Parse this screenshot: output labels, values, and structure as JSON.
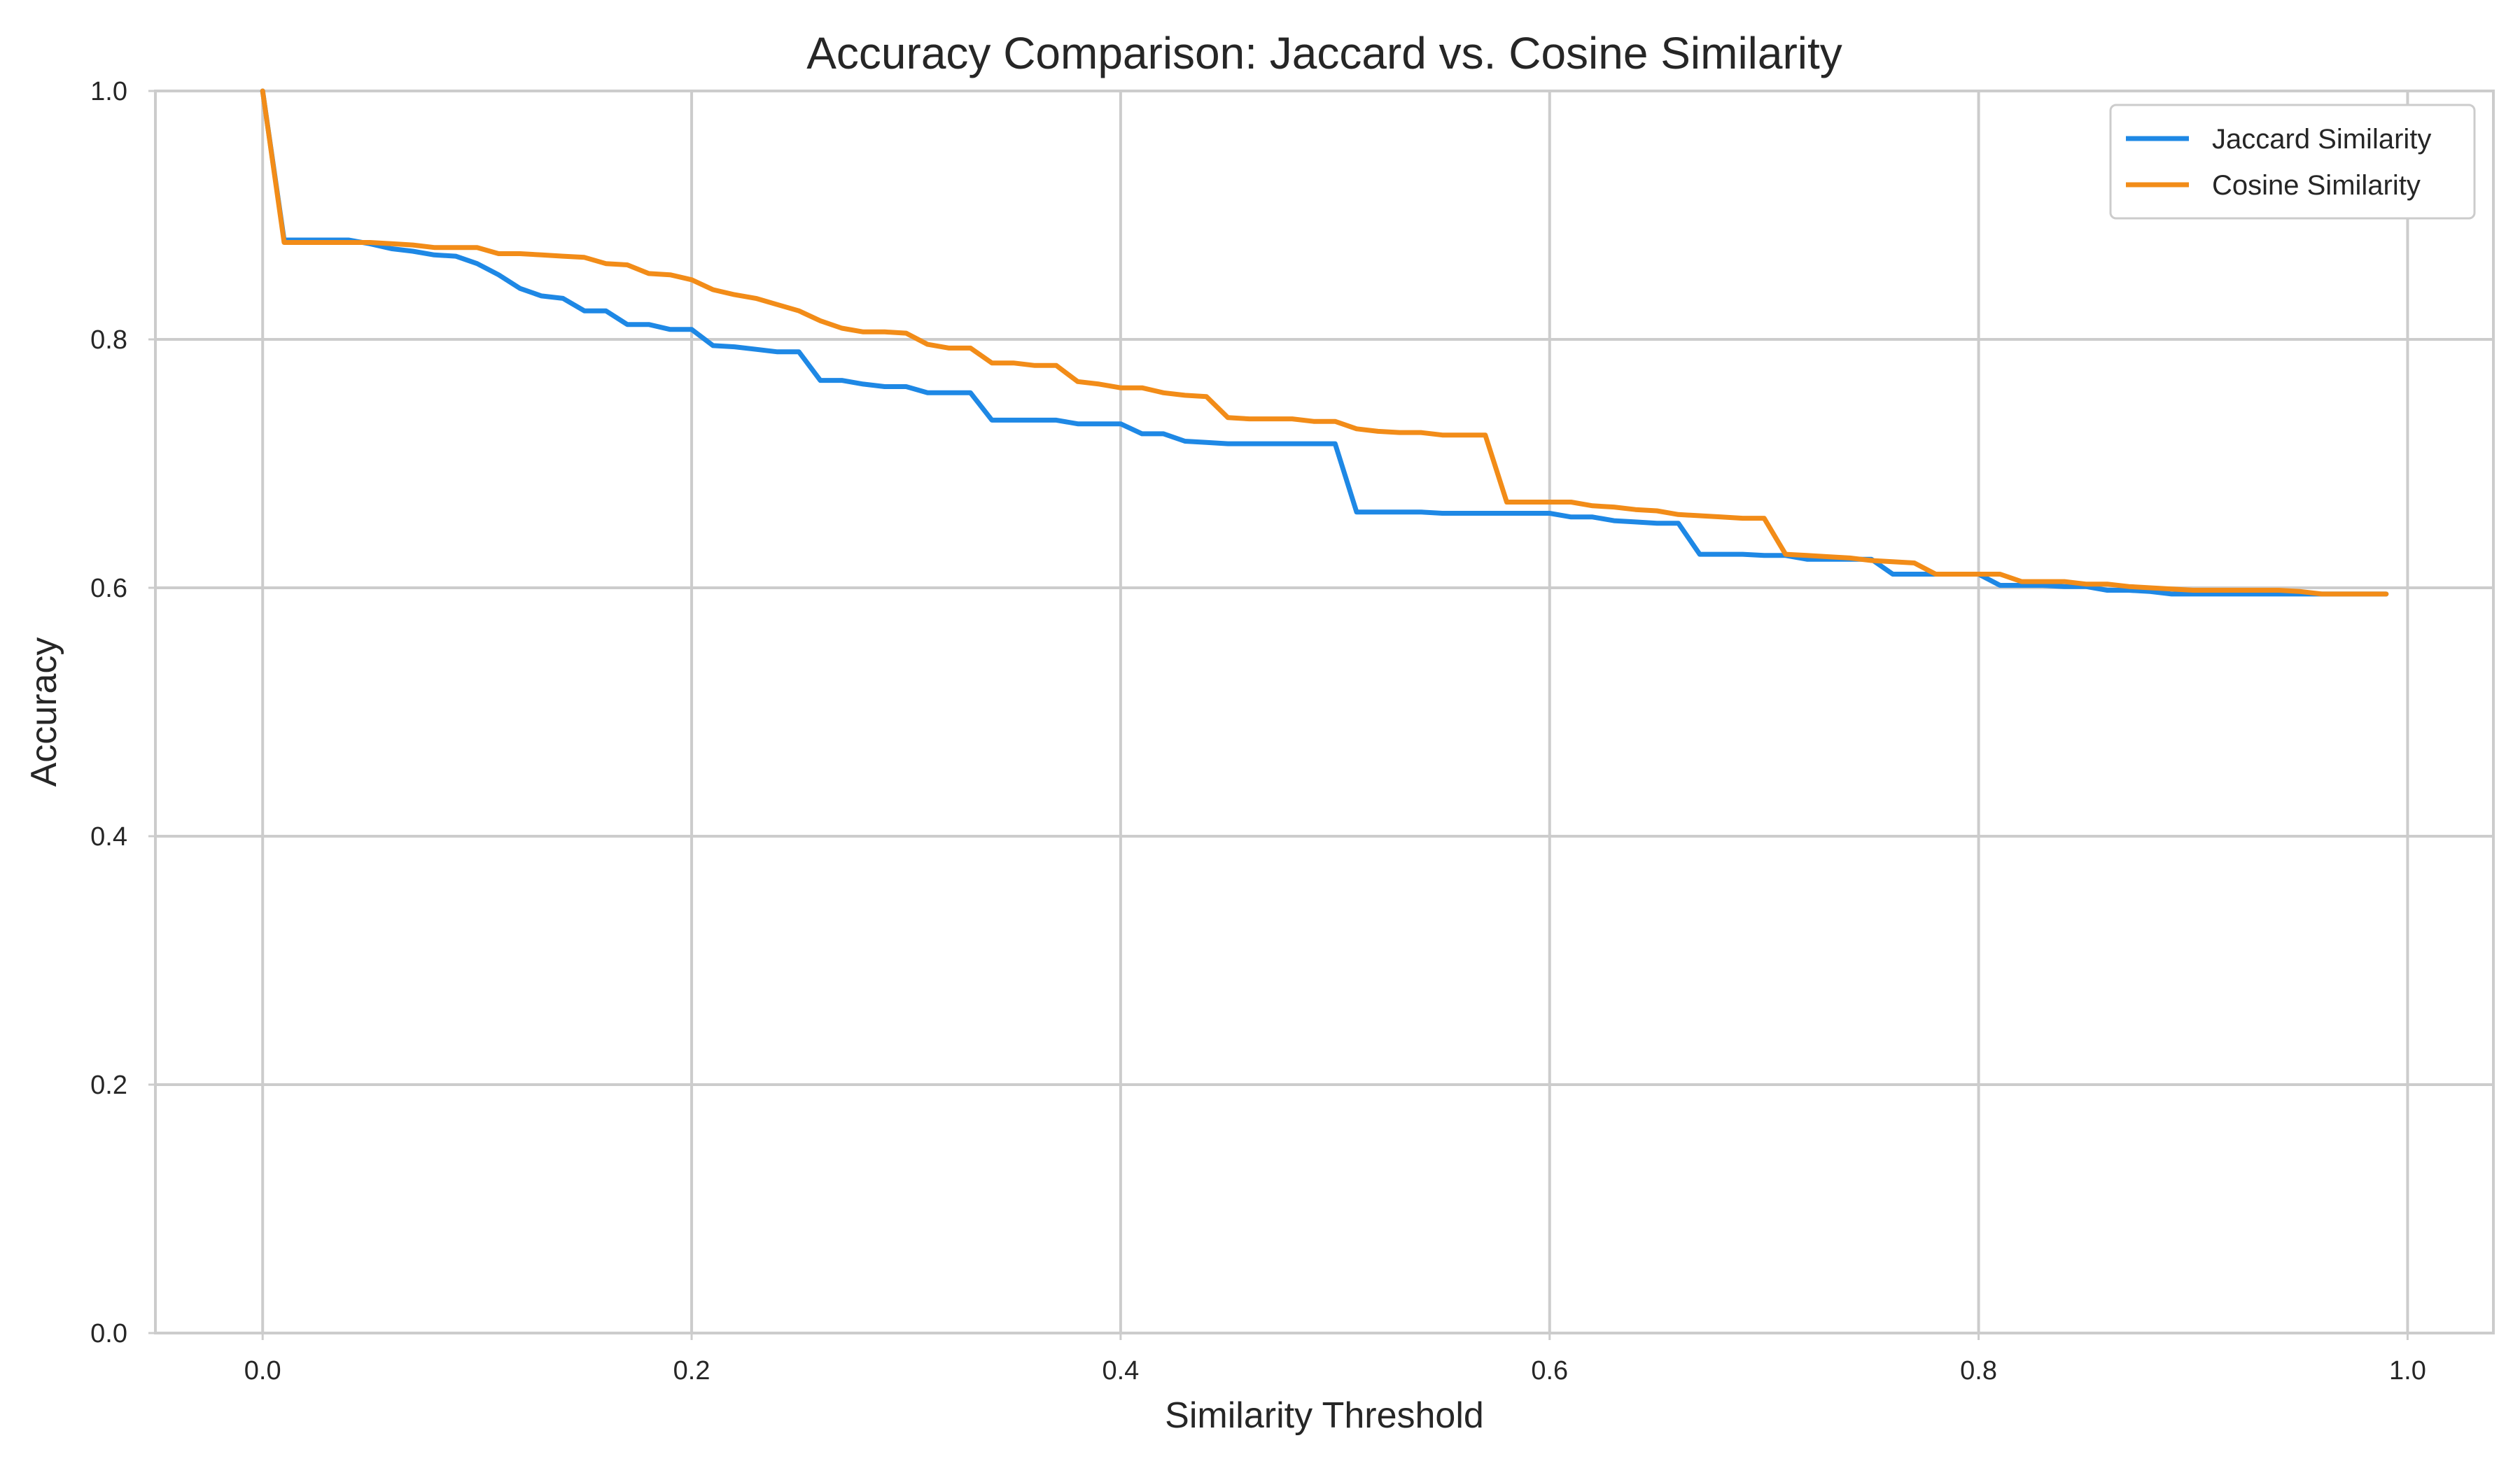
{
  "chart_data": {
    "type": "line",
    "title": "Accuracy Comparison: Jaccard vs. Cosine Similarity",
    "xlabel": "Similarity Threshold",
    "ylabel": "Accuracy",
    "xlim": [
      -0.05,
      1.04
    ],
    "ylim": [
      0.0,
      1.0
    ],
    "xticks": [
      0.0,
      0.2,
      0.4,
      0.6,
      0.8,
      1.0
    ],
    "xtick_labels": [
      "0.0",
      "0.2",
      "0.4",
      "0.6",
      "0.8",
      "1.0"
    ],
    "yticks": [
      0.0,
      0.2,
      0.4,
      0.6,
      0.8,
      1.0
    ],
    "ytick_labels": [
      "0.0",
      "0.2",
      "0.4",
      "0.6",
      "0.8",
      "1.0"
    ],
    "grid": true,
    "legend_position": "top-right",
    "x": [
      0.0,
      0.01,
      0.02,
      0.03,
      0.04,
      0.05,
      0.06,
      0.07,
      0.08,
      0.09,
      0.1,
      0.11,
      0.12,
      0.13,
      0.14,
      0.15,
      0.16,
      0.17,
      0.18,
      0.19,
      0.2,
      0.21,
      0.22,
      0.23,
      0.24,
      0.25,
      0.26,
      0.27,
      0.28,
      0.29,
      0.3,
      0.31,
      0.32,
      0.33,
      0.34,
      0.35,
      0.36,
      0.37,
      0.38,
      0.39,
      0.4,
      0.41,
      0.42,
      0.43,
      0.44,
      0.45,
      0.46,
      0.47,
      0.48,
      0.49,
      0.5,
      0.51,
      0.52,
      0.53,
      0.54,
      0.55,
      0.56,
      0.57,
      0.58,
      0.59,
      0.6,
      0.61,
      0.62,
      0.63,
      0.64,
      0.65,
      0.66,
      0.67,
      0.68,
      0.69,
      0.7,
      0.71,
      0.72,
      0.73,
      0.74,
      0.75,
      0.76,
      0.77,
      0.78,
      0.79,
      0.8,
      0.81,
      0.82,
      0.83,
      0.84,
      0.85,
      0.86,
      0.87,
      0.88,
      0.89,
      0.9,
      0.91,
      0.92,
      0.93,
      0.94,
      0.95,
      0.96,
      0.97,
      0.98,
      0.99
    ],
    "series": [
      {
        "name": "Jaccard Similarity",
        "color": "#1e88e5",
        "values": [
          1.0,
          0.88,
          0.88,
          0.88,
          0.88,
          0.877,
          0.873,
          0.871,
          0.868,
          0.867,
          0.861,
          0.852,
          0.841,
          0.835,
          0.833,
          0.823,
          0.823,
          0.812,
          0.812,
          0.808,
          0.808,
          0.795,
          0.794,
          0.792,
          0.79,
          0.79,
          0.767,
          0.767,
          0.764,
          0.762,
          0.762,
          0.757,
          0.757,
          0.757,
          0.735,
          0.735,
          0.735,
          0.735,
          0.732,
          0.732,
          0.732,
          0.724,
          0.724,
          0.718,
          0.717,
          0.716,
          0.716,
          0.716,
          0.716,
          0.716,
          0.716,
          0.661,
          0.661,
          0.661,
          0.661,
          0.66,
          0.66,
          0.66,
          0.66,
          0.66,
          0.66,
          0.657,
          0.657,
          0.654,
          0.653,
          0.652,
          0.652,
          0.627,
          0.627,
          0.627,
          0.626,
          0.626,
          0.623,
          0.623,
          0.623,
          0.623,
          0.611,
          0.611,
          0.611,
          0.611,
          0.611,
          0.602,
          0.602,
          0.602,
          0.601,
          0.601,
          0.598,
          0.598,
          0.597,
          0.595,
          0.595,
          0.595,
          0.595,
          0.595,
          0.595,
          0.595,
          0.595,
          0.595,
          0.595,
          0.595
        ]
      },
      {
        "name": "Cosine Similarity",
        "color": "#f28c18",
        "values": [
          1.0,
          0.878,
          0.878,
          0.878,
          0.878,
          0.878,
          0.877,
          0.876,
          0.874,
          0.874,
          0.874,
          0.869,
          0.869,
          0.868,
          0.867,
          0.866,
          0.861,
          0.86,
          0.853,
          0.852,
          0.848,
          0.84,
          0.836,
          0.833,
          0.828,
          0.823,
          0.815,
          0.809,
          0.806,
          0.806,
          0.805,
          0.796,
          0.793,
          0.793,
          0.781,
          0.781,
          0.779,
          0.779,
          0.766,
          0.764,
          0.761,
          0.761,
          0.757,
          0.755,
          0.754,
          0.737,
          0.736,
          0.736,
          0.736,
          0.734,
          0.734,
          0.728,
          0.726,
          0.725,
          0.725,
          0.723,
          0.723,
          0.723,
          0.669,
          0.669,
          0.669,
          0.669,
          0.666,
          0.665,
          0.663,
          0.662,
          0.659,
          0.658,
          0.657,
          0.656,
          0.656,
          0.627,
          0.626,
          0.625,
          0.624,
          0.622,
          0.621,
          0.62,
          0.611,
          0.611,
          0.611,
          0.611,
          0.605,
          0.605,
          0.605,
          0.603,
          0.603,
          0.601,
          0.6,
          0.599,
          0.598,
          0.598,
          0.598,
          0.598,
          0.598,
          0.597,
          0.595,
          0.595,
          0.595,
          0.595
        ]
      }
    ]
  }
}
